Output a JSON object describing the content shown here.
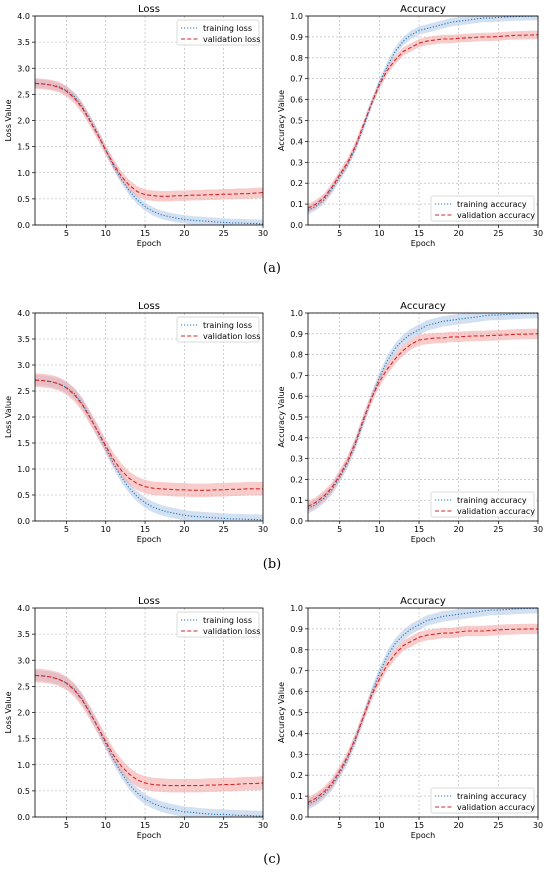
{
  "panel_labels": [
    "(a)",
    "(b)",
    "(c)"
  ],
  "chart_data": [
    {
      "type": "line",
      "panel": "a",
      "title": "Loss",
      "xlabel": "Epoch",
      "ylabel": "Loss Value",
      "xlim": [
        1,
        30
      ],
      "ylim": [
        0,
        4.0
      ],
      "xticks": [
        5,
        10,
        15,
        20,
        25,
        30
      ],
      "yticks": [
        0.0,
        0.5,
        1.0,
        1.5,
        2.0,
        2.5,
        3.0,
        3.5,
        4.0
      ],
      "ytick_labels": [
        "0.0",
        "0.5",
        "1.0",
        "1.5",
        "2.0",
        "2.5",
        "3.0",
        "3.5",
        "4.0"
      ],
      "grid": true,
      "legend_position": "top-right",
      "x": [
        1,
        2,
        3,
        4,
        5,
        6,
        7,
        8,
        9,
        10,
        11,
        12,
        13,
        14,
        15,
        16,
        17,
        18,
        19,
        20,
        21,
        22,
        23,
        24,
        25,
        26,
        27,
        28,
        29,
        30
      ],
      "series": [
        {
          "name": "training loss",
          "color": "#1f77b4",
          "style": "dotted",
          "band": 0.08,
          "values": [
            2.71,
            2.7,
            2.68,
            2.65,
            2.58,
            2.46,
            2.27,
            2.02,
            1.74,
            1.43,
            1.13,
            0.87,
            0.65,
            0.48,
            0.35,
            0.26,
            0.2,
            0.16,
            0.13,
            0.11,
            0.09,
            0.08,
            0.07,
            0.06,
            0.05,
            0.04,
            0.04,
            0.03,
            0.03,
            0.02
          ]
        },
        {
          "name": "validation loss",
          "color": "#d62728",
          "style": "dashed",
          "band": 0.1,
          "values": [
            2.71,
            2.7,
            2.68,
            2.64,
            2.56,
            2.43,
            2.24,
            1.99,
            1.72,
            1.43,
            1.16,
            0.93,
            0.76,
            0.64,
            0.58,
            0.56,
            0.55,
            0.55,
            0.56,
            0.56,
            0.57,
            0.57,
            0.58,
            0.58,
            0.59,
            0.59,
            0.6,
            0.6,
            0.61,
            0.62
          ]
        }
      ]
    },
    {
      "type": "line",
      "panel": "a",
      "title": "Accuracy",
      "xlabel": "Epoch",
      "ylabel": "Accuracy Value",
      "xlim": [
        1,
        30
      ],
      "ylim": [
        0,
        1.0
      ],
      "xticks": [
        5,
        10,
        15,
        20,
        25,
        30
      ],
      "yticks": [
        0.0,
        0.1,
        0.2,
        0.3,
        0.4,
        0.5,
        0.6,
        0.7,
        0.8,
        0.9,
        1.0
      ],
      "ytick_labels": [
        "0.0",
        "0.1",
        "0.2",
        "0.3",
        "0.4",
        "0.5",
        "0.6",
        "0.7",
        "0.8",
        "0.9",
        "1.0"
      ],
      "grid": true,
      "legend_position": "bottom-right",
      "x": [
        1,
        2,
        3,
        4,
        5,
        6,
        7,
        8,
        9,
        10,
        11,
        12,
        13,
        14,
        15,
        16,
        17,
        18,
        19,
        20,
        21,
        22,
        23,
        24,
        25,
        26,
        27,
        28,
        29,
        30
      ],
      "series": [
        {
          "name": "training accuracy",
          "color": "#1f77b4",
          "style": "dotted",
          "band": 0.02,
          "values": [
            0.07,
            0.09,
            0.12,
            0.17,
            0.23,
            0.29,
            0.37,
            0.47,
            0.58,
            0.68,
            0.76,
            0.83,
            0.88,
            0.91,
            0.93,
            0.94,
            0.95,
            0.96,
            0.97,
            0.975,
            0.98,
            0.985,
            0.99,
            0.99,
            0.993,
            0.995,
            0.997,
            0.998,
            0.999,
            1.0
          ]
        },
        {
          "name": "validation accuracy",
          "color": "#d62728",
          "style": "dashed",
          "band": 0.02,
          "values": [
            0.08,
            0.1,
            0.13,
            0.18,
            0.24,
            0.3,
            0.38,
            0.48,
            0.58,
            0.67,
            0.74,
            0.79,
            0.83,
            0.85,
            0.87,
            0.88,
            0.885,
            0.89,
            0.89,
            0.893,
            0.895,
            0.897,
            0.9,
            0.9,
            0.902,
            0.905,
            0.907,
            0.908,
            0.909,
            0.91
          ]
        }
      ]
    },
    {
      "type": "line",
      "panel": "b",
      "title": "Loss",
      "xlabel": "Epoch",
      "ylabel": "Loss Value",
      "xlim": [
        1,
        30
      ],
      "ylim": [
        0,
        4.0
      ],
      "xticks": [
        5,
        10,
        15,
        20,
        25,
        30
      ],
      "yticks": [
        0.0,
        0.5,
        1.0,
        1.5,
        2.0,
        2.5,
        3.0,
        3.5,
        4.0
      ],
      "ytick_labels": [
        "0.0",
        "0.5",
        "1.0",
        "1.5",
        "2.0",
        "2.5",
        "3.0",
        "3.5",
        "4.0"
      ],
      "grid": true,
      "legend_position": "top-right",
      "x": [
        1,
        2,
        3,
        4,
        5,
        6,
        7,
        8,
        9,
        10,
        11,
        12,
        13,
        14,
        15,
        16,
        17,
        18,
        19,
        20,
        21,
        22,
        23,
        24,
        25,
        26,
        27,
        28,
        29,
        30
      ],
      "series": [
        {
          "name": "training loss",
          "color": "#1f77b4",
          "style": "dotted",
          "band": 0.1,
          "values": [
            2.71,
            2.7,
            2.68,
            2.64,
            2.57,
            2.45,
            2.26,
            2.0,
            1.71,
            1.4,
            1.1,
            0.84,
            0.63,
            0.47,
            0.35,
            0.27,
            0.21,
            0.17,
            0.14,
            0.11,
            0.09,
            0.08,
            0.07,
            0.06,
            0.05,
            0.04,
            0.04,
            0.03,
            0.03,
            0.02
          ]
        },
        {
          "name": "validation loss",
          "color": "#d62728",
          "style": "dashed",
          "band": 0.13,
          "values": [
            2.71,
            2.7,
            2.68,
            2.64,
            2.56,
            2.43,
            2.24,
            1.99,
            1.72,
            1.44,
            1.18,
            0.97,
            0.82,
            0.72,
            0.66,
            0.63,
            0.62,
            0.61,
            0.6,
            0.6,
            0.59,
            0.59,
            0.59,
            0.6,
            0.6,
            0.61,
            0.61,
            0.62,
            0.62,
            0.62
          ]
        }
      ]
    },
    {
      "type": "line",
      "panel": "b",
      "title": "Accuracy",
      "xlabel": "Epoch",
      "ylabel": "Accuracy Value",
      "xlim": [
        1,
        30
      ],
      "ylim": [
        0,
        1.0
      ],
      "xticks": [
        5,
        10,
        15,
        20,
        25,
        30
      ],
      "yticks": [
        0.0,
        0.1,
        0.2,
        0.3,
        0.4,
        0.5,
        0.6,
        0.7,
        0.8,
        0.9,
        1.0
      ],
      "ytick_labels": [
        "0.0",
        "0.1",
        "0.2",
        "0.3",
        "0.4",
        "0.5",
        "0.6",
        "0.7",
        "0.8",
        "0.9",
        "1.0"
      ],
      "grid": true,
      "legend_position": "bottom-right",
      "x": [
        1,
        2,
        3,
        4,
        5,
        6,
        7,
        8,
        9,
        10,
        11,
        12,
        13,
        14,
        15,
        16,
        17,
        18,
        19,
        20,
        21,
        22,
        23,
        24,
        25,
        26,
        27,
        28,
        29,
        30
      ],
      "series": [
        {
          "name": "training accuracy",
          "color": "#1f77b4",
          "style": "dotted",
          "band": 0.025,
          "values": [
            0.06,
            0.08,
            0.11,
            0.15,
            0.21,
            0.28,
            0.37,
            0.48,
            0.59,
            0.69,
            0.77,
            0.83,
            0.87,
            0.9,
            0.92,
            0.94,
            0.95,
            0.96,
            0.965,
            0.97,
            0.975,
            0.98,
            0.985,
            0.99,
            0.99,
            0.993,
            0.995,
            0.997,
            0.998,
            0.999
          ]
        },
        {
          "name": "validation accuracy",
          "color": "#d62728",
          "style": "dashed",
          "band": 0.025,
          "values": [
            0.07,
            0.09,
            0.12,
            0.16,
            0.22,
            0.29,
            0.38,
            0.49,
            0.59,
            0.67,
            0.73,
            0.78,
            0.82,
            0.85,
            0.87,
            0.875,
            0.88,
            0.88,
            0.885,
            0.885,
            0.888,
            0.89,
            0.89,
            0.892,
            0.893,
            0.895,
            0.897,
            0.898,
            0.899,
            0.9
          ]
        }
      ]
    },
    {
      "type": "line",
      "panel": "c",
      "title": "Loss",
      "xlabel": "Epoch",
      "ylabel": "Loss Value",
      "xlim": [
        1,
        30
      ],
      "ylim": [
        0,
        4.0
      ],
      "xticks": [
        5,
        10,
        15,
        20,
        25,
        30
      ],
      "yticks": [
        0.0,
        0.5,
        1.0,
        1.5,
        2.0,
        2.5,
        3.0,
        3.5,
        4.0
      ],
      "ytick_labels": [
        "0.0",
        "0.5",
        "1.0",
        "1.5",
        "2.0",
        "2.5",
        "3.0",
        "3.5",
        "4.0"
      ],
      "grid": true,
      "legend_position": "top-right",
      "x": [
        1,
        2,
        3,
        4,
        5,
        6,
        7,
        8,
        9,
        10,
        11,
        12,
        13,
        14,
        15,
        16,
        17,
        18,
        19,
        20,
        21,
        22,
        23,
        24,
        25,
        26,
        27,
        28,
        29,
        30
      ],
      "series": [
        {
          "name": "training loss",
          "color": "#1f77b4",
          "style": "dotted",
          "band": 0.1,
          "values": [
            2.71,
            2.7,
            2.68,
            2.64,
            2.57,
            2.45,
            2.26,
            2.0,
            1.71,
            1.4,
            1.1,
            0.84,
            0.62,
            0.46,
            0.34,
            0.26,
            0.2,
            0.16,
            0.13,
            0.1,
            0.09,
            0.07,
            0.06,
            0.05,
            0.05,
            0.04,
            0.03,
            0.03,
            0.02,
            0.02
          ]
        },
        {
          "name": "validation loss",
          "color": "#d62728",
          "style": "dashed",
          "band": 0.13,
          "values": [
            2.71,
            2.7,
            2.68,
            2.64,
            2.56,
            2.43,
            2.24,
            1.99,
            1.72,
            1.44,
            1.18,
            0.97,
            0.82,
            0.71,
            0.65,
            0.62,
            0.61,
            0.6,
            0.6,
            0.6,
            0.6,
            0.6,
            0.61,
            0.61,
            0.62,
            0.62,
            0.63,
            0.64,
            0.64,
            0.65
          ]
        }
      ]
    },
    {
      "type": "line",
      "panel": "c",
      "title": "Accuracy",
      "xlabel": "Epoch",
      "ylabel": "Accuracy Value",
      "xlim": [
        1,
        30
      ],
      "ylim": [
        0,
        1.0
      ],
      "xticks": [
        5,
        10,
        15,
        20,
        25,
        30
      ],
      "yticks": [
        0.0,
        0.1,
        0.2,
        0.3,
        0.4,
        0.5,
        0.6,
        0.7,
        0.8,
        0.9,
        1.0
      ],
      "ytick_labels": [
        "0.0",
        "0.1",
        "0.2",
        "0.3",
        "0.4",
        "0.5",
        "0.6",
        "0.7",
        "0.8",
        "0.9",
        "1.0"
      ],
      "grid": true,
      "legend_position": "bottom-right",
      "x": [
        1,
        2,
        3,
        4,
        5,
        6,
        7,
        8,
        9,
        10,
        11,
        12,
        13,
        14,
        15,
        16,
        17,
        18,
        19,
        20,
        21,
        22,
        23,
        24,
        25,
        26,
        27,
        28,
        29,
        30
      ],
      "series": [
        {
          "name": "training accuracy",
          "color": "#1f77b4",
          "style": "dotted",
          "band": 0.025,
          "values": [
            0.06,
            0.08,
            0.11,
            0.15,
            0.21,
            0.28,
            0.37,
            0.48,
            0.59,
            0.69,
            0.77,
            0.83,
            0.87,
            0.9,
            0.92,
            0.94,
            0.95,
            0.96,
            0.965,
            0.97,
            0.975,
            0.98,
            0.985,
            0.99,
            0.99,
            0.993,
            0.995,
            0.997,
            0.998,
            0.999
          ]
        },
        {
          "name": "validation accuracy",
          "color": "#d62728",
          "style": "dashed",
          "band": 0.025,
          "values": [
            0.07,
            0.09,
            0.12,
            0.16,
            0.22,
            0.29,
            0.38,
            0.48,
            0.58,
            0.66,
            0.73,
            0.78,
            0.82,
            0.84,
            0.86,
            0.87,
            0.875,
            0.88,
            0.88,
            0.885,
            0.89,
            0.89,
            0.89,
            0.892,
            0.895,
            0.897,
            0.898,
            0.899,
            0.9,
            0.9
          ]
        }
      ]
    }
  ]
}
